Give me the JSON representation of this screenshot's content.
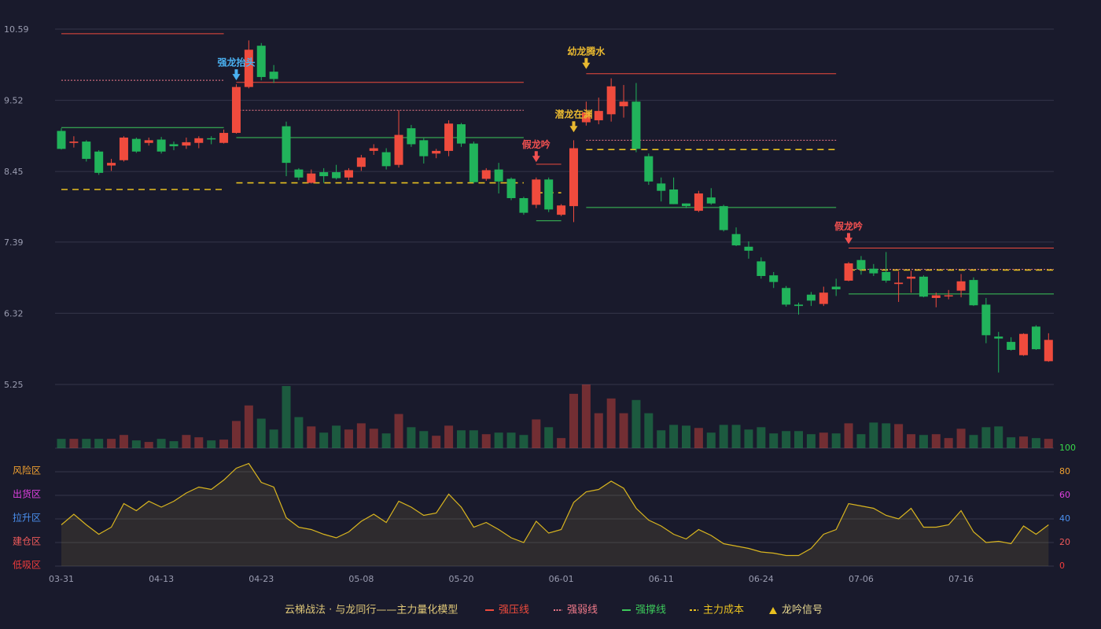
{
  "chart_data": {
    "type": "candlestick",
    "categories": [
      "03-31",
      null,
      null,
      null,
      null,
      null,
      null,
      null,
      "04-13",
      null,
      null,
      null,
      null,
      null,
      null,
      null,
      "04-23",
      null,
      null,
      null,
      null,
      null,
      null,
      null,
      "05-08",
      null,
      null,
      null,
      null,
      null,
      null,
      null,
      "05-20",
      null,
      null,
      null,
      null,
      null,
      null,
      null,
      "06-01",
      null,
      null,
      null,
      null,
      null,
      null,
      null,
      "06-11",
      null,
      null,
      null,
      null,
      null,
      null,
      null,
      "06-24",
      null,
      null,
      null,
      null,
      null,
      null,
      null,
      "07-06",
      null,
      null,
      null,
      null,
      null,
      null,
      null,
      "07-16",
      null,
      null,
      null,
      null,
      null,
      null,
      null
    ],
    "open": [
      9.06,
      8.88,
      8.9,
      8.75,
      8.54,
      8.62,
      8.94,
      8.88,
      8.93,
      8.86,
      8.84,
      8.88,
      8.95,
      8.88,
      9.03,
      9.72,
      10.34,
      9.95,
      9.13,
      8.48,
      8.28,
      8.44,
      8.44,
      8.36,
      8.52,
      8.76,
      8.74,
      8.55,
      9.1,
      8.92,
      8.72,
      8.76,
      9.16,
      8.87,
      8.34,
      8.48,
      8.34,
      8.05,
      7.95,
      8.33,
      7.8,
      7.93,
      9.19,
      9.22,
      9.31,
      9.43,
      9.5,
      8.68,
      8.27,
      8.18,
      7.97,
      7.86,
      8.06,
      7.93,
      7.51,
      7.32,
      7.1,
      6.89,
      6.7,
      6.45,
      6.6,
      6.46,
      6.72,
      6.81,
      7.12,
      6.99,
      6.94,
      6.76,
      6.84,
      6.87,
      6.55,
      6.58,
      6.66,
      6.82,
      6.45,
      5.97,
      5.89,
      5.69,
      6.12,
      5.6
    ],
    "close": [
      8.79,
      8.9,
      8.64,
      8.43,
      8.58,
      8.96,
      8.75,
      8.92,
      8.75,
      8.83,
      8.89,
      8.95,
      8.94,
      9.03,
      9.72,
      10.28,
      9.87,
      9.84,
      8.58,
      8.36,
      8.42,
      8.38,
      8.35,
      8.47,
      8.66,
      8.8,
      8.53,
      9.0,
      8.86,
      8.68,
      8.76,
      9.17,
      8.87,
      8.29,
      8.47,
      8.3,
      8.05,
      7.83,
      8.33,
      7.88,
      7.94,
      8.8,
      9.34,
      9.36,
      9.73,
      9.5,
      8.79,
      8.3,
      8.16,
      7.96,
      7.93,
      8.12,
      7.97,
      7.57,
      7.34,
      7.26,
      6.88,
      6.79,
      6.45,
      6.43,
      6.51,
      6.63,
      6.68,
      7.07,
      6.98,
      6.92,
      6.81,
      6.78,
      6.87,
      6.57,
      6.59,
      6.59,
      6.8,
      6.44,
      5.99,
      5.94,
      5.77,
      6.01,
      5.78,
      5.92
    ],
    "high": [
      9.1,
      8.98,
      8.92,
      8.77,
      8.64,
      8.98,
      8.96,
      8.96,
      8.97,
      8.9,
      8.96,
      8.98,
      8.98,
      9.08,
      9.76,
      10.42,
      10.38,
      10.05,
      9.2,
      8.5,
      8.48,
      8.5,
      8.55,
      8.5,
      8.7,
      8.86,
      8.8,
      9.37,
      9.15,
      8.95,
      8.79,
      9.22,
      9.18,
      8.9,
      8.5,
      8.58,
      8.36,
      8.07,
      8.36,
      8.36,
      7.96,
      8.92,
      9.5,
      9.56,
      9.85,
      9.75,
      9.78,
      8.72,
      8.36,
      8.36,
      7.97,
      8.16,
      8.2,
      7.95,
      7.61,
      7.4,
      7.16,
      6.94,
      6.73,
      6.48,
      6.64,
      6.72,
      6.84,
      7.09,
      7.18,
      7.06,
      7.24,
      6.95,
      6.96,
      6.89,
      6.63,
      6.67,
      6.91,
      6.86,
      6.55,
      6.04,
      5.96,
      6.02,
      6.14,
      6.02
    ],
    "low": [
      8.78,
      8.81,
      8.6,
      8.4,
      8.46,
      8.6,
      8.73,
      8.84,
      8.72,
      8.77,
      8.79,
      8.8,
      8.86,
      8.87,
      9.02,
      9.7,
      9.82,
      9.78,
      8.38,
      8.32,
      8.27,
      8.28,
      8.33,
      8.32,
      8.46,
      8.7,
      8.48,
      8.51,
      8.82,
      8.57,
      8.65,
      8.68,
      8.82,
      8.27,
      8.31,
      8.12,
      8.02,
      7.8,
      7.9,
      7.84,
      7.78,
      7.69,
      9.14,
      9.16,
      9.2,
      9.26,
      8.74,
      8.25,
      8.0,
      7.96,
      7.9,
      7.84,
      7.95,
      7.55,
      7.33,
      7.14,
      6.84,
      6.7,
      6.42,
      6.3,
      6.43,
      6.43,
      6.58,
      6.8,
      6.9,
      6.88,
      6.78,
      6.49,
      6.63,
      6.56,
      6.41,
      6.53,
      6.56,
      6.43,
      5.87,
      5.43,
      5.76,
      5.68,
      5.77,
      5.59
    ],
    "up_color": "#ef4b3d",
    "down_color": "#21b35b",
    "ylim": [
      5.25,
      10.59
    ],
    "yticks": [
      10.59,
      9.52,
      8.45,
      7.39,
      6.32,
      5.25
    ],
    "grid": true,
    "volume": {
      "values": [
        12,
        12,
        12,
        12,
        12,
        17,
        10,
        8,
        12,
        9,
        17,
        14,
        10,
        11,
        35,
        55,
        38,
        24,
        80,
        40,
        28,
        20,
        29,
        24,
        32,
        25,
        19,
        44,
        27,
        22,
        16,
        29,
        23,
        23,
        18,
        20,
        20,
        17,
        37,
        27,
        13,
        70,
        82,
        45,
        64,
        45,
        62,
        45,
        23,
        30,
        29,
        26,
        20,
        30,
        30,
        24,
        27,
        19,
        22,
        22,
        18,
        20,
        19,
        32,
        18,
        33,
        32,
        31,
        18,
        17,
        18,
        13,
        25,
        17,
        27,
        28,
        14,
        15,
        13,
        12
      ],
      "ylim": [
        0,
        82
      ]
    },
    "indicator": {
      "values": [
        35,
        44,
        35,
        27,
        33,
        53,
        47,
        55,
        50,
        55,
        62,
        67,
        65,
        73,
        83,
        87,
        71,
        67,
        41,
        33,
        31,
        27,
        24,
        29,
        38,
        44,
        37,
        55,
        50,
        43,
        45,
        61,
        50,
        33,
        37,
        31,
        24,
        20,
        38,
        28,
        31,
        54,
        63,
        65,
        72,
        66,
        49,
        39,
        34,
        27,
        23,
        31,
        26,
        19,
        17,
        15,
        12,
        11,
        9,
        9,
        15,
        27,
        31,
        53,
        51,
        49,
        43,
        40,
        49,
        33,
        33,
        35,
        47,
        29,
        20,
        21,
        19,
        34,
        27,
        35
      ],
      "color": "#d9b51f",
      "ylim": [
        0,
        100
      ],
      "yticks": [
        100,
        80,
        60,
        40,
        20,
        0
      ],
      "tick_colors": [
        "#37d94a",
        "#f0a030",
        "#e040e0",
        "#4a90f0",
        "#f05a5a",
        "#f03c3c"
      ],
      "zones": [
        {
          "label": "风险区",
          "value": 80,
          "color": "#f0a030"
        },
        {
          "label": "出货区",
          "value": 60,
          "color": "#e040e0"
        },
        {
          "label": "拉升区",
          "value": 40,
          "color": "#4a90f0"
        },
        {
          "label": "建仓区",
          "value": 20,
          "color": "#f05a5a"
        },
        {
          "label": "低吸区",
          "value": 0,
          "color": "#f03c3c"
        }
      ]
    },
    "lines": [
      {
        "name": "强压线",
        "color": "#ef4b3d",
        "style": "solid",
        "segments": [
          {
            "from": 0,
            "to": 13,
            "value": 10.52
          },
          {
            "from": 14,
            "to": 37,
            "value": 9.79
          },
          {
            "from": 38,
            "to": 40,
            "value": 8.56
          },
          {
            "from": 42,
            "to": 62,
            "value": 9.92
          },
          {
            "from": 63,
            "to": 79,
            "value": 7.3
          }
        ]
      },
      {
        "name": "强弱线",
        "color": "#f07a8a",
        "style": "dotted",
        "segments": [
          {
            "from": 0,
            "to": 13,
            "value": 9.82
          },
          {
            "from": 14,
            "to": 37,
            "value": 9.37
          },
          {
            "from": 42,
            "to": 62,
            "value": 8.92
          },
          {
            "from": 63,
            "to": 79,
            "value": 6.98
          }
        ]
      },
      {
        "name": "强撑线",
        "color": "#3cc85a",
        "style": "solid",
        "segments": [
          {
            "from": 0,
            "to": 13,
            "value": 9.11
          },
          {
            "from": 14,
            "to": 37,
            "value": 8.96
          },
          {
            "from": 38,
            "to": 40,
            "value": 7.71
          },
          {
            "from": 42,
            "to": 62,
            "value": 7.91
          },
          {
            "from": 63,
            "to": 79,
            "value": 6.61
          }
        ]
      },
      {
        "name": "主力成本",
        "color": "#e8c020",
        "style": "dashed",
        "segments": [
          {
            "from": 0,
            "to": 13,
            "value": 8.18
          },
          {
            "from": 14,
            "to": 37,
            "value": 8.28
          },
          {
            "from": 38,
            "to": 40,
            "value": 8.13
          },
          {
            "from": 42,
            "to": 62,
            "value": 8.78
          },
          {
            "from": 63,
            "to": 79,
            "value": 6.97
          }
        ]
      }
    ],
    "signals": [
      {
        "text": "强龙抬头",
        "color": "#4ab0f0",
        "index": 14,
        "price": 9.82
      },
      {
        "text": "假龙吟",
        "color": "#f05050",
        "index": 38,
        "price": 8.59
      },
      {
        "text": "潜龙在渊",
        "color": "#e8b830",
        "index": 41,
        "price": 9.04
      },
      {
        "text": "幼龙腾水",
        "color": "#e8b830",
        "index": 42,
        "price": 9.99
      },
      {
        "text": "假龙吟",
        "color": "#f05050",
        "index": 63,
        "price": 7.36
      }
    ],
    "signal_legend": {
      "name": "龙吟信号",
      "color": "#e8c020"
    },
    "legend_title": "云梯战法 · 与龙同行——主力量化模型"
  }
}
